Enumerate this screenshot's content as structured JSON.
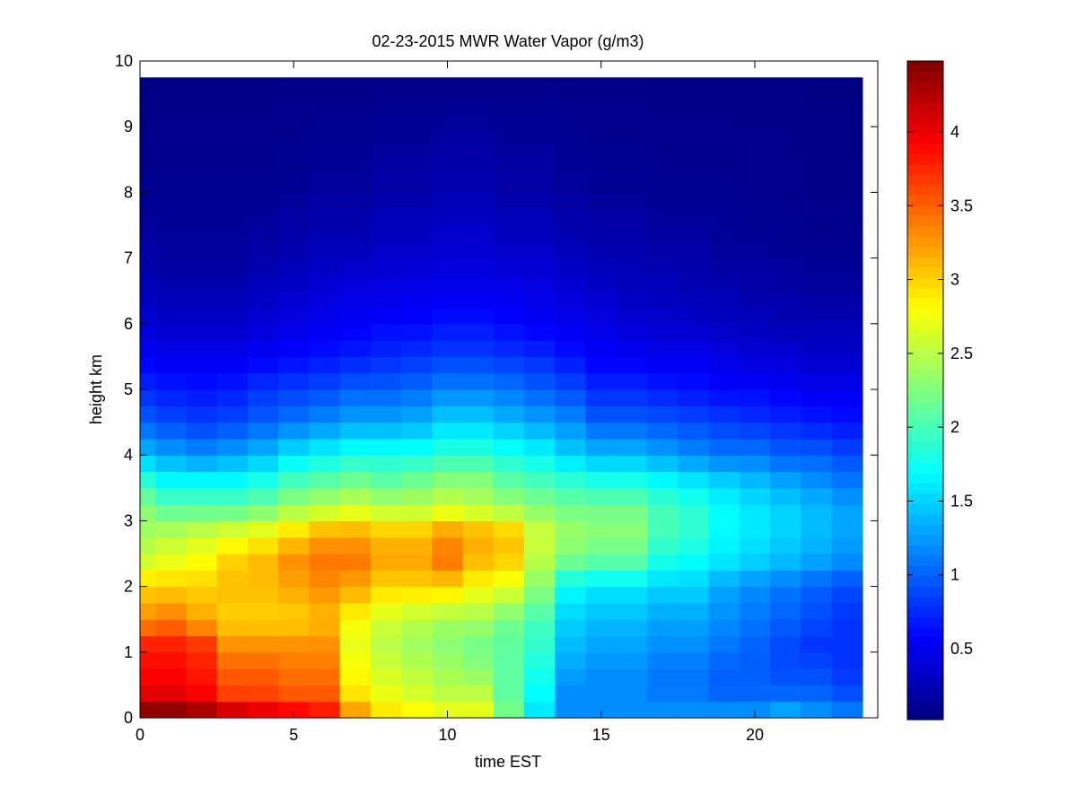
{
  "chart_data": {
    "type": "heatmap",
    "title": "02-23-2015 MWR Water Vapor (g/m3)",
    "xlabel": "time EST",
    "ylabel": "height km",
    "xlim": [
      0,
      24
    ],
    "ylim": [
      0,
      10
    ],
    "x_ticks": [
      "0",
      "5",
      "10",
      "15",
      "20"
    ],
    "y_ticks": [
      "0",
      "1",
      "2",
      "3",
      "4",
      "5",
      "6",
      "7",
      "8",
      "9",
      "10"
    ],
    "colorbar": {
      "colormap": "jet",
      "range": [
        0.02,
        4.48
      ],
      "ticks": [
        "0.5",
        "1",
        "1.5",
        "2",
        "2.5",
        "3",
        "3.5",
        "4"
      ]
    },
    "grid": false,
    "x": [
      0.25,
      1.0,
      2.0,
      3.0,
      4.0,
      5.0,
      6.0,
      7.0,
      8.0,
      9.0,
      10.0,
      11.0,
      12.0,
      13.0,
      14.0,
      15.0,
      16.0,
      17.0,
      18.0,
      19.0,
      20.0,
      21.0,
      22.0,
      23.0
    ],
    "x_edges": [
      0,
      0.5,
      1.5,
      2.5,
      3.5,
      4.5,
      5.5,
      6.5,
      7.5,
      8.5,
      9.5,
      10.5,
      11.5,
      12.5,
      13.5,
      14.5,
      15.5,
      16.5,
      17.5,
      18.5,
      19.5,
      20.5,
      21.5,
      22.5,
      23.5
    ],
    "y_edges": [
      0,
      0.25,
      0.5,
      0.75,
      1.0,
      1.25,
      1.5,
      1.75,
      2.0,
      2.25,
      2.5,
      2.75,
      3.0,
      3.25,
      3.5,
      3.75,
      4.0,
      4.25,
      4.5,
      4.75,
      5.0,
      5.25,
      5.5,
      5.75,
      6.0,
      6.25,
      6.5,
      6.75,
      7.0,
      7.25,
      7.5,
      7.75,
      8.0,
      8.25,
      8.5,
      8.75,
      9.0,
      9.25,
      9.5,
      9.75
    ],
    "profiles_note_key": "values given per time column at height anchors; rows interpolated by height",
    "height_anchors": [
      0.12,
      0.4,
      0.75,
      1.1,
      1.5,
      2.0,
      2.4,
      2.8,
      3.2,
      3.6,
      4.0,
      4.5,
      5.0,
      5.5,
      6.0,
      6.5,
      7.0,
      8.0,
      9.75
    ],
    "values": [
      [
        4.4,
        4.0,
        3.9,
        3.8,
        3.3,
        3.0,
        2.6,
        2.4,
        2.3,
        1.9,
        1.4,
        1.0,
        0.75,
        0.55,
        0.4,
        0.3,
        0.2,
        0.1,
        0.05
      ],
      [
        4.4,
        4.0,
        3.9,
        3.8,
        3.4,
        3.0,
        2.7,
        2.5,
        2.1,
        1.7,
        1.3,
        0.9,
        0.7,
        0.5,
        0.35,
        0.25,
        0.15,
        0.1,
        0.05
      ],
      [
        4.3,
        3.9,
        3.8,
        3.7,
        3.2,
        3.0,
        2.8,
        2.6,
        2.1,
        1.7,
        1.2,
        0.85,
        0.65,
        0.5,
        0.35,
        0.25,
        0.15,
        0.1,
        0.05
      ],
      [
        4.1,
        3.6,
        3.5,
        3.3,
        3.0,
        3.1,
        3.0,
        2.7,
        2.1,
        1.7,
        1.3,
        0.9,
        0.7,
        0.5,
        0.35,
        0.25,
        0.15,
        0.1,
        0.05
      ],
      [
        4.0,
        3.6,
        3.5,
        3.3,
        3.0,
        3.1,
        3.1,
        2.8,
        2.2,
        1.8,
        1.4,
        1.0,
        0.8,
        0.55,
        0.4,
        0.3,
        0.2,
        0.1,
        0.05
      ],
      [
        3.9,
        3.5,
        3.4,
        3.3,
        3.0,
        3.2,
        3.3,
        3.0,
        2.4,
        2.0,
        1.6,
        1.1,
        0.85,
        0.6,
        0.45,
        0.35,
        0.25,
        0.12,
        0.05
      ],
      [
        3.8,
        3.5,
        3.4,
        3.3,
        3.1,
        3.3,
        3.4,
        3.2,
        2.5,
        2.1,
        1.7,
        1.2,
        0.9,
        0.65,
        0.5,
        0.4,
        0.3,
        0.15,
        0.05
      ],
      [
        3.2,
        2.9,
        2.8,
        2.7,
        2.8,
        3.2,
        3.4,
        3.2,
        2.6,
        2.2,
        1.8,
        1.3,
        1.0,
        0.7,
        0.55,
        0.45,
        0.3,
        0.15,
        0.05
      ],
      [
        2.9,
        2.7,
        2.6,
        2.5,
        2.6,
        3.0,
        3.2,
        3.1,
        2.5,
        2.1,
        1.8,
        1.3,
        1.0,
        0.75,
        0.6,
        0.45,
        0.35,
        0.2,
        0.06
      ],
      [
        2.8,
        2.6,
        2.5,
        2.4,
        2.5,
        3.0,
        3.2,
        3.1,
        2.5,
        2.2,
        1.8,
        1.35,
        1.05,
        0.8,
        0.6,
        0.5,
        0.35,
        0.2,
        0.06
      ],
      [
        2.7,
        2.5,
        2.4,
        2.3,
        2.4,
        3.0,
        3.4,
        3.3,
        2.6,
        2.3,
        1.9,
        1.5,
        1.15,
        0.85,
        0.65,
        0.5,
        0.4,
        0.25,
        0.06
      ],
      [
        2.7,
        2.5,
        2.3,
        2.2,
        2.4,
        2.8,
        3.1,
        3.2,
        2.5,
        2.3,
        1.9,
        1.5,
        1.15,
        0.85,
        0.65,
        0.5,
        0.4,
        0.25,
        0.06
      ],
      [
        2.2,
        2.1,
        2.1,
        2.1,
        2.2,
        2.7,
        3.0,
        3.1,
        2.4,
        2.1,
        1.8,
        1.4,
        1.1,
        0.8,
        0.6,
        0.5,
        0.35,
        0.2,
        0.06
      ],
      [
        1.6,
        1.7,
        1.8,
        1.9,
        2.0,
        2.3,
        2.5,
        2.6,
        2.3,
        2.0,
        1.7,
        1.3,
        1.0,
        0.75,
        0.55,
        0.45,
        0.35,
        0.2,
        0.06
      ],
      [
        1.2,
        1.2,
        1.3,
        1.4,
        1.5,
        1.7,
        2.2,
        2.4,
        2.2,
        1.9,
        1.5,
        1.2,
        0.9,
        0.65,
        0.5,
        0.4,
        0.3,
        0.15,
        0.05
      ],
      [
        1.2,
        1.2,
        1.2,
        1.3,
        1.4,
        1.6,
        2.1,
        2.3,
        2.2,
        1.8,
        1.4,
        1.0,
        0.75,
        0.55,
        0.45,
        0.35,
        0.25,
        0.12,
        0.05
      ],
      [
        1.2,
        1.2,
        1.2,
        1.3,
        1.4,
        1.6,
        2.1,
        2.3,
        2.2,
        1.8,
        1.4,
        1.0,
        0.75,
        0.55,
        0.4,
        0.3,
        0.25,
        0.12,
        0.05
      ],
      [
        1.2,
        1.1,
        1.1,
        1.2,
        1.3,
        1.5,
        1.8,
        2.0,
        2.0,
        1.7,
        1.3,
        0.95,
        0.7,
        0.5,
        0.35,
        0.3,
        0.2,
        0.1,
        0.05
      ],
      [
        1.2,
        1.1,
        1.1,
        1.2,
        1.3,
        1.5,
        1.7,
        1.9,
        1.9,
        1.6,
        1.2,
        0.9,
        0.65,
        0.5,
        0.35,
        0.25,
        0.2,
        0.1,
        0.05
      ],
      [
        1.2,
        1.0,
        1.0,
        1.1,
        1.2,
        1.3,
        1.6,
        1.7,
        1.7,
        1.5,
        1.1,
        0.85,
        0.6,
        0.45,
        0.3,
        0.25,
        0.15,
        0.1,
        0.05
      ],
      [
        1.2,
        1.0,
        1.0,
        1.0,
        1.1,
        1.2,
        1.5,
        1.6,
        1.6,
        1.4,
        1.1,
        0.8,
        0.6,
        0.4,
        0.3,
        0.2,
        0.15,
        0.08,
        0.05
      ],
      [
        1.3,
        1.0,
        0.9,
        0.9,
        1.0,
        1.1,
        1.4,
        1.5,
        1.5,
        1.3,
        1.0,
        0.75,
        0.55,
        0.4,
        0.25,
        0.2,
        0.12,
        0.08,
        0.05
      ],
      [
        1.2,
        1.0,
        0.9,
        0.8,
        0.9,
        1.0,
        1.3,
        1.4,
        1.4,
        1.2,
        1.0,
        0.7,
        0.5,
        0.35,
        0.25,
        0.15,
        0.1,
        0.06,
        0.04
      ],
      [
        1.1,
        0.9,
        0.8,
        0.8,
        0.8,
        0.9,
        1.2,
        1.3,
        1.3,
        1.1,
        0.9,
        0.65,
        0.5,
        0.35,
        0.25,
        0.15,
        0.1,
        0.06,
        0.04
      ]
    ]
  }
}
